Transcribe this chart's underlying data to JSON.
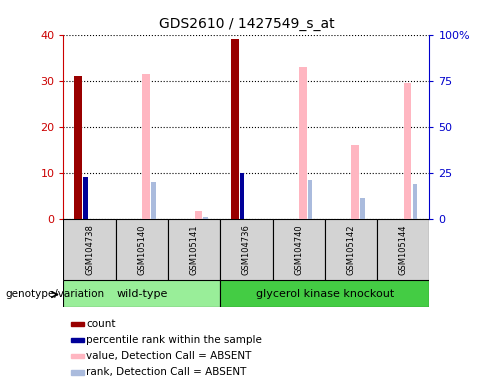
{
  "title": "GDS2610 / 1427549_s_at",
  "samples": [
    "GSM104738",
    "GSM105140",
    "GSM105141",
    "GSM104736",
    "GSM104740",
    "GSM105142",
    "GSM105144"
  ],
  "count_values": [
    31,
    0,
    0,
    39,
    0,
    0,
    0
  ],
  "percentile_rank_values": [
    9,
    0,
    0,
    10,
    0,
    0,
    0
  ],
  "value_absent": [
    0,
    31.5,
    1.8,
    0,
    33,
    16,
    29.5
  ],
  "rank_absent": [
    0,
    8,
    0.5,
    0,
    8.5,
    4.5,
    7.5
  ],
  "ylim_left": [
    0,
    40
  ],
  "ylim_right": [
    0,
    100
  ],
  "yticks_left": [
    0,
    10,
    20,
    30,
    40
  ],
  "yticks_right": [
    0,
    25,
    50,
    75,
    100
  ],
  "yticklabels_right": [
    "0",
    "25",
    "50",
    "75",
    "100%"
  ],
  "wt_samples": 3,
  "colors": {
    "count": "#990000",
    "percentile_rank": "#000099",
    "value_absent": "#FFB6C1",
    "rank_absent": "#AABBDD",
    "axes_left_tick": "#CC0000",
    "axes_right_tick": "#0000CC",
    "bg_sample": "#D3D3D3",
    "group_wt": "#99EE99",
    "group_ko": "#44CC44"
  },
  "legend_items": [
    {
      "label": "count",
      "color": "#990000"
    },
    {
      "label": "percentile rank within the sample",
      "color": "#000099"
    },
    {
      "label": "value, Detection Call = ABSENT",
      "color": "#FFB6C1"
    },
    {
      "label": "rank, Detection Call = ABSENT",
      "color": "#AABBDD"
    }
  ],
  "genotype_label": "genotype/variation"
}
